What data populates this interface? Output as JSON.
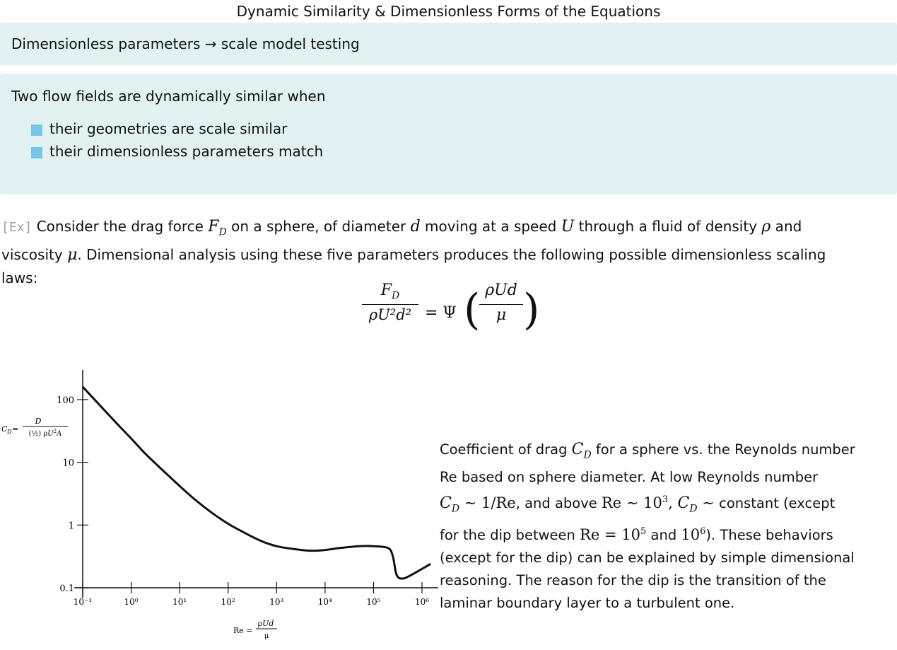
{
  "title": "Dynamic Similarity & Dimensionless Forms of the Equations",
  "box1": {
    "text": "Dimensionless parameters → scale model testing"
  },
  "box2": {
    "intro": "Two flow fields are dynamically similar when",
    "bullets": [
      "their geometries are scale similar",
      "their dimensionless parameters match"
    ]
  },
  "example": {
    "tag": "[Ex]",
    "t1": " Consider the drag force ",
    "t2": " on a sphere, of diameter ",
    "t3": " moving at a speed ",
    "t4": " through a fluid of density ",
    "t5": " and",
    "t6": "viscosity ",
    "t7": ". Dimensional analysis using these five parameters produces the following possible dimensionless scaling",
    "t8": "laws:"
  },
  "equation": {
    "lhs_num": "F_D",
    "lhs_den": "ρU²d²",
    "equals": "= Ψ",
    "rhs_num": "ρUd",
    "rhs_den": "μ"
  },
  "chart_data": {
    "type": "line",
    "title": "",
    "xscale": "log",
    "yscale": "log",
    "xlim": [
      0.1,
      1000000
    ],
    "ylim": [
      0.1,
      200
    ],
    "x_ticks": [
      "10⁻¹",
      "10⁰",
      "10¹",
      "10²",
      "10³",
      "10⁴",
      "10⁵",
      "10⁶"
    ],
    "y_ticks": [
      "100",
      "10",
      "1",
      "0.1"
    ],
    "ylabel": "C_D = D / (½) ρU²A",
    "xlabel": "Re = ρUd / μ",
    "series": [
      {
        "x": [
          0.1,
          0.2,
          0.5,
          1,
          2,
          5,
          10,
          20,
          50,
          100,
          200,
          500,
          1000,
          2000,
          5000,
          10000,
          20000,
          50000,
          100000,
          200000,
          250000,
          300000,
          400000,
          600000,
          1000000,
          1500000
        ],
        "y": [
          160,
          90,
          42,
          24,
          13.5,
          6.9,
          4.2,
          2.6,
          1.5,
          1.05,
          0.78,
          0.55,
          0.46,
          0.42,
          0.39,
          0.4,
          0.43,
          0.46,
          0.46,
          0.43,
          0.32,
          0.16,
          0.14,
          0.16,
          0.2,
          0.24
        ]
      }
    ]
  },
  "caption": {
    "c1": "Coefficient of drag ",
    "c2": " for a sphere vs. the Reynolds number",
    "c3": "Re based on sphere diameter. At low Reynolds number",
    "c4": ", and above ",
    "c5": " constant (except",
    "c6": "for the dip between ",
    "c7": " and ",
    "c8": "). These behaviors",
    "c9": "(except for the dip) can be explained by simple dimensional",
    "c10": "reasoning. The reason for the dip is the transition of the",
    "c11": "laminar boundary layer to a turbulent one."
  }
}
